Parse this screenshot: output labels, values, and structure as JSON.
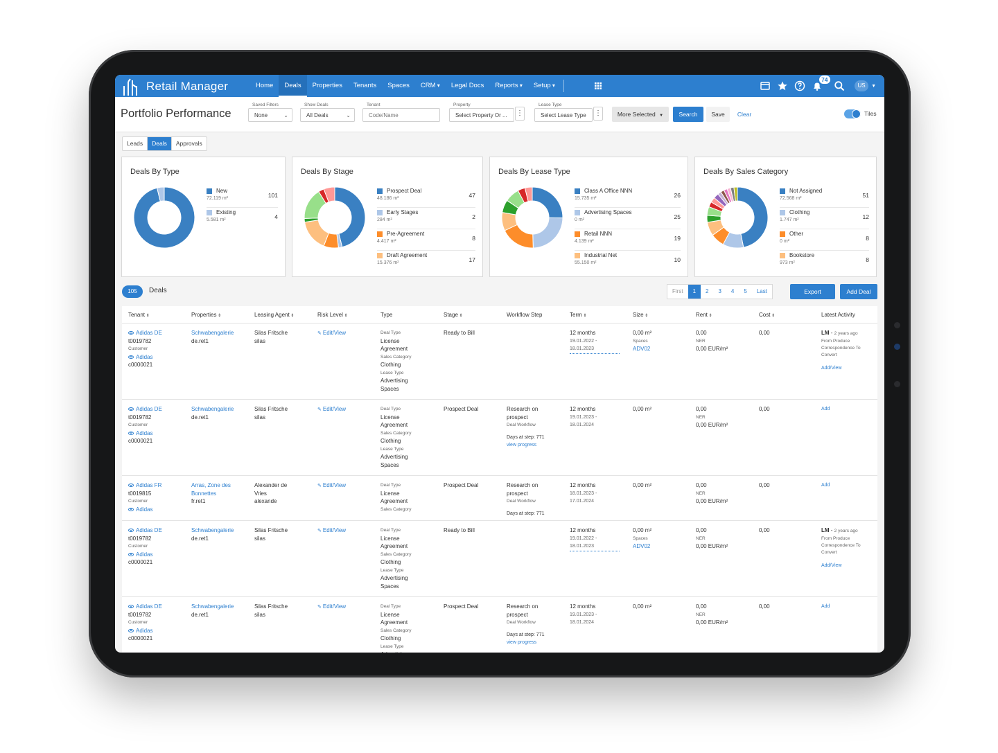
{
  "app": {
    "name": "Retail Manager"
  },
  "nav": {
    "items": [
      {
        "label": "Home",
        "active": false
      },
      {
        "label": "Deals",
        "active": true
      },
      {
        "label": "Properties",
        "active": false
      },
      {
        "label": "Tenants",
        "active": false
      },
      {
        "label": "Spaces",
        "active": false
      },
      {
        "label": "CRM",
        "active": false,
        "caret": true
      },
      {
        "label": "Legal Docs",
        "active": false
      },
      {
        "label": "Reports",
        "active": false,
        "caret": true
      },
      {
        "label": "Setup",
        "active": false,
        "caret": true
      }
    ],
    "notifications": "74",
    "user_initials": "US",
    "icons": [
      "window-icon",
      "star-icon",
      "help-icon",
      "bell-icon",
      "search-icon"
    ]
  },
  "filters": {
    "title": "Portfolio Performance",
    "saved_filters": {
      "label": "Saved Filters",
      "value": "None"
    },
    "show_deals": {
      "label": "Show Deals",
      "value": "All Deals"
    },
    "tenant": {
      "label": "Tenant",
      "placeholder": "Code/Name"
    },
    "property": {
      "label": "Property",
      "placeholder": "Select Property Or ..."
    },
    "lease_type": {
      "label": "Lease Type",
      "placeholder": "Select Lease Type"
    },
    "more_selected": "More Selected",
    "search": "Search",
    "save": "Save",
    "clear": "Clear",
    "tiles": "Tiles"
  },
  "tabs": [
    {
      "label": "Leads",
      "active": false
    },
    {
      "label": "Deals",
      "active": true
    },
    {
      "label": "Approvals",
      "active": false
    }
  ],
  "cards": [
    {
      "title": "Deals By Type",
      "slices": [
        {
          "name": "New",
          "sub": "72.119 m²",
          "value": 101,
          "color": "#3a80c2"
        },
        {
          "name": "Existing",
          "sub": "5.581 m²",
          "value": 4,
          "color": "#aec7e8"
        }
      ]
    },
    {
      "title": "Deals By Stage",
      "legend": [
        {
          "name": "Prospect Deal",
          "sub": "48.186 m²",
          "value": 47,
          "color": "#3a80c2"
        },
        {
          "name": "Early Stages",
          "sub": "284 m²",
          "value": 2,
          "color": "#aec7e8"
        },
        {
          "name": "Pre-Agreement",
          "sub": "4.417 m²",
          "value": 8,
          "color": "#fd8d2a"
        },
        {
          "name": "Draft Agreement",
          "sub": "15.376 m²",
          "value": 17,
          "color": "#fdbf7f"
        }
      ],
      "slices": [
        {
          "value": 47,
          "color": "#3a80c2"
        },
        {
          "value": 2,
          "color": "#aec7e8"
        },
        {
          "value": 8,
          "color": "#fd8d2a"
        },
        {
          "value": 17,
          "color": "#fdbf7f"
        },
        {
          "value": 2,
          "color": "#2ca02c"
        },
        {
          "value": 17,
          "color": "#98df8a"
        },
        {
          "value": 3,
          "color": "#d62728"
        },
        {
          "value": 6,
          "color": "#ff9896"
        }
      ]
    },
    {
      "title": "Deals By Lease Type",
      "legend": [
        {
          "name": "Class A Office NNN",
          "sub": "15.735 m²",
          "value": 26,
          "color": "#3a80c2"
        },
        {
          "name": "Advertising Spaces",
          "sub": "0 m²",
          "value": 25,
          "color": "#aec7e8"
        },
        {
          "name": "Retail NNN",
          "sub": "4.139 m²",
          "value": 19,
          "color": "#fd8d2a"
        },
        {
          "name": "Industrial Net",
          "sub": "55.150 m²",
          "value": 10,
          "color": "#fdbf7f"
        }
      ],
      "slices": [
        {
          "value": 26,
          "color": "#3a80c2"
        },
        {
          "value": 25,
          "color": "#aec7e8"
        },
        {
          "value": 19,
          "color": "#fd8d2a"
        },
        {
          "value": 10,
          "color": "#fdbf7f"
        },
        {
          "value": 7,
          "color": "#2ca02c"
        },
        {
          "value": 8,
          "color": "#98df8a"
        },
        {
          "value": 4,
          "color": "#d62728"
        },
        {
          "value": 4,
          "color": "#ff9896"
        }
      ]
    },
    {
      "title": "Deals By Sales Category",
      "legend": [
        {
          "name": "Not Assigned",
          "sub": "72.568 m²",
          "value": 51,
          "color": "#3a80c2"
        },
        {
          "name": "Clothing",
          "sub": "1.747 m²",
          "value": 12,
          "color": "#aec7e8"
        },
        {
          "name": "Other",
          "sub": "0 m²",
          "value": 8,
          "color": "#fd8d2a"
        },
        {
          "name": "Bookstore",
          "sub": "973 m²",
          "value": 8,
          "color": "#fdbf7f"
        }
      ],
      "slices": [
        {
          "value": 51,
          "color": "#3a80c2"
        },
        {
          "value": 12,
          "color": "#aec7e8"
        },
        {
          "value": 8,
          "color": "#fd8d2a"
        },
        {
          "value": 8,
          "color": "#fdbf7f"
        },
        {
          "value": 4,
          "color": "#2ca02c"
        },
        {
          "value": 5,
          "color": "#98df8a"
        },
        {
          "value": 3,
          "color": "#d62728"
        },
        {
          "value": 3,
          "color": "#ff9896"
        },
        {
          "value": 3,
          "color": "#9467bd"
        },
        {
          "value": 2,
          "color": "#c5b0d5"
        },
        {
          "value": 2,
          "color": "#8c564b"
        },
        {
          "value": 2,
          "color": "#e377c2"
        },
        {
          "value": 2,
          "color": "#f7b6d2"
        },
        {
          "value": 2,
          "color": "#7f7f7f"
        },
        {
          "value": 2,
          "color": "#bcbd22"
        }
      ]
    }
  ],
  "deals": {
    "count": "105",
    "label": "Deals",
    "pager": [
      "First",
      "1",
      "2",
      "3",
      "4",
      "5",
      "Last"
    ],
    "export": "Export",
    "add_deal": "Add Deal",
    "columns": [
      "Tenant",
      "Properties",
      "Leasing Agent",
      "Risk Level",
      "Type",
      "Stage",
      "Workflow Step",
      "Term",
      "Size",
      "Rent",
      "Cost",
      "Latest Activity"
    ],
    "rows": [
      {
        "tenant": "Adidas DE",
        "tenant_code": "t0019782",
        "customer_label": "Customer",
        "customer": "Adidas",
        "customer_code": "c0000021",
        "property": "Schwabengalerie",
        "property_code": "de.ret1",
        "agent": "Silas Fritsche",
        "agent_code": "silas",
        "risk": "Edit/View",
        "type_lines": [
          "Deal Type|sm",
          "License|",
          "Agreement|",
          "Sales Category|sm",
          "Clothing|",
          "Lease Type|sm",
          "Advertising|",
          "Spaces|"
        ],
        "stage": "Ready to Bill",
        "wf_step": "",
        "wf_sub": "",
        "wf_days": "",
        "wf_link": "",
        "term": "12 months",
        "term_range": "19.01.2022 - 18.01.2023",
        "term_dotted": true,
        "size": "0,00 m²",
        "size_sub": "Spaces",
        "size_link": "ADV02",
        "rent": "0,00",
        "rent_sub": "NER",
        "rent_rate": "0,00 EUR/m²",
        "cost": "0,00",
        "activity_tag": "LM",
        "activity_time": "2 years ago",
        "activity_text": "From Produce Correspondence To Convert",
        "activity_link": "Add/View",
        "height": 109
      },
      {
        "tenant": "Adidas DE",
        "tenant_code": "t0019782",
        "customer_label": "Customer",
        "customer": "Adidas",
        "customer_code": "c0000021",
        "property": "Schwabengalerie",
        "property_code": "de.ret1",
        "agent": "Silas Fritsche",
        "agent_code": "silas",
        "risk": "Edit/View",
        "type_lines": [
          "Deal Type|sm",
          "License|",
          "Agreement|",
          "Sales Category|sm",
          "Clothing|",
          "Lease Type|sm",
          "Advertising|",
          "Spaces|"
        ],
        "stage": "Prospect Deal",
        "wf_step": "Research on prospect",
        "wf_sub": "Deal Workflow",
        "wf_days": "Days at step: 771",
        "wf_link": "view progress",
        "term": "12 months",
        "term_range": "19.01.2023 - 18.01.2024",
        "term_dotted": false,
        "size": "0,00 m²",
        "size_sub": "",
        "size_link": "",
        "rent": "0,00",
        "rent_sub": "NER",
        "rent_rate": "0,00 EUR/m²",
        "cost": "0,00",
        "activity_tag": "",
        "activity_time": "",
        "activity_text": "",
        "activity_link": "Add",
        "height": 109
      },
      {
        "tenant": "Adidas FR",
        "tenant_code": "t0019815",
        "customer_label": "Customer",
        "customer": "Adidas",
        "customer_code": "",
        "property": "Arras, Zone des Bonnettes",
        "property_code": "fr.ret1",
        "agent": "Alexander de Vries",
        "agent_code": "alexande",
        "risk": "Edit/View",
        "type_lines": [
          "Deal Type|sm",
          "License|",
          "Agreement|",
          "Sales Category|sm"
        ],
        "stage": "Prospect Deal",
        "wf_step": "Research on prospect",
        "wf_sub": "Deal Workflow",
        "wf_days": "Days at step: 771",
        "wf_link": "",
        "term": "12 months",
        "term_range": "18.01.2023 - 17.01.2024",
        "term_dotted": false,
        "size": "0,00 m²",
        "size_sub": "",
        "size_link": "",
        "rent": "0,00",
        "rent_sub": "NER",
        "rent_rate": "0,00 EUR/m²",
        "cost": "0,00",
        "activity_tag": "",
        "activity_time": "",
        "activity_text": "",
        "activity_link": "Add",
        "height": 64
      },
      {
        "tenant": "Adidas DE",
        "tenant_code": "t0019782",
        "customer_label": "Customer",
        "customer": "Adidas",
        "customer_code": "c0000021",
        "property": "Schwabengalerie",
        "property_code": "de.ret1",
        "agent": "Silas Fritsche",
        "agent_code": "silas",
        "risk": "Edit/View",
        "type_lines": [
          "Deal Type|sm",
          "License|",
          "Agreement|",
          "Sales Category|sm",
          "Clothing|",
          "Lease Type|sm",
          "Advertising|",
          "Spaces|"
        ],
        "stage": "Ready to Bill",
        "wf_step": "",
        "wf_sub": "",
        "wf_days": "",
        "wf_link": "",
        "term": "12 months",
        "term_range": "19.01.2022 - 18.01.2023",
        "term_dotted": true,
        "size": "0,00 m²",
        "size_sub": "Spaces",
        "size_link": "ADV02",
        "rent": "0,00",
        "rent_sub": "NER",
        "rent_rate": "0,00 EUR/m²",
        "cost": "0,00",
        "activity_tag": "LM",
        "activity_time": "2 years ago",
        "activity_text": "From Produce Correspondence To Convert",
        "activity_link": "Add/View",
        "height": 109
      },
      {
        "tenant": "Adidas DE",
        "tenant_code": "t0019782",
        "customer_label": "Customer",
        "customer": "Adidas",
        "customer_code": "c0000021",
        "property": "Schwabengalerie",
        "property_code": "de.ret1",
        "agent": "Silas Fritsche",
        "agent_code": "silas",
        "risk": "Edit/View",
        "type_lines": [
          "Deal Type|sm",
          "License|",
          "Agreement|",
          "Sales Category|sm",
          "Clothing|",
          "Lease Type|sm",
          "Advertising|"
        ],
        "stage": "Prospect Deal",
        "wf_step": "Research on prospect",
        "wf_sub": "Deal Workflow",
        "wf_days": "Days at step: 771",
        "wf_link": "view progress",
        "term": "12 months",
        "term_range": "19.01.2023 - 18.01.2024",
        "term_dotted": false,
        "size": "0,00 m²",
        "size_sub": "",
        "size_link": "",
        "rent": "0,00",
        "rent_sub": "NER",
        "rent_rate": "0,00 EUR/m²",
        "cost": "0,00",
        "activity_tag": "",
        "activity_time": "",
        "activity_text": "",
        "activity_link": "Add",
        "height": 109
      }
    ]
  }
}
